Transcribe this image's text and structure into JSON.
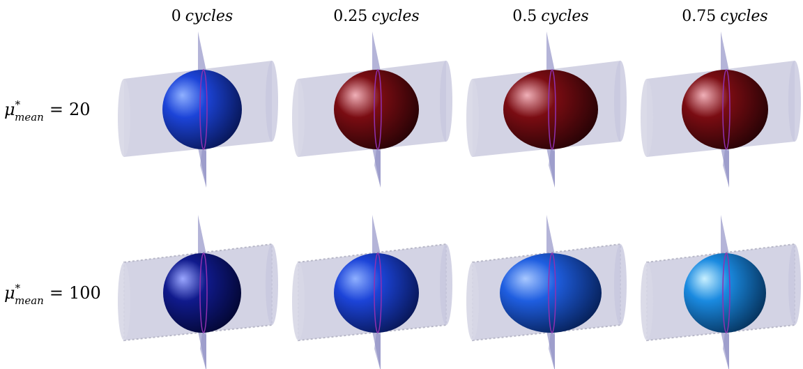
{
  "columns": [
    {
      "value": "0",
      "unit": "cycles"
    },
    {
      "value": "0.25",
      "unit": "cycles"
    },
    {
      "value": "0.5",
      "unit": "cycles"
    },
    {
      "value": "0.75",
      "unit": "cycles"
    }
  ],
  "rows": [
    {
      "symbol": "μ",
      "sup": "*",
      "sub": "mean",
      "relation": "=",
      "value": "20"
    },
    {
      "symbol": "μ",
      "sup": "*",
      "sub": "mean",
      "relation": "=",
      "value": "100"
    }
  ]
}
